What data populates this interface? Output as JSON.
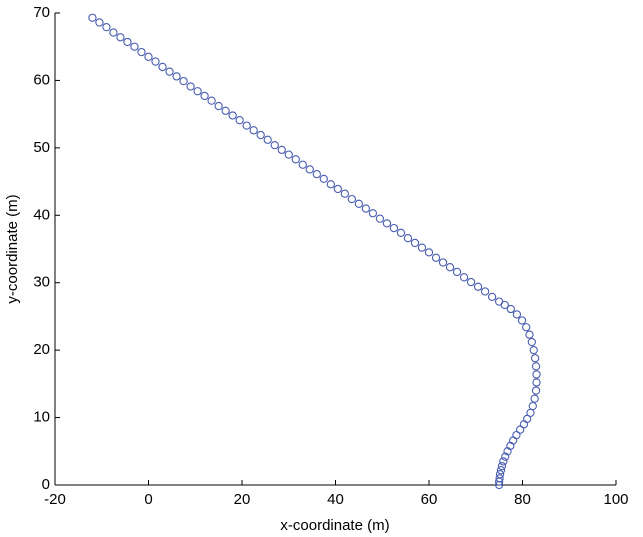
{
  "chart_data": {
    "type": "scatter",
    "x_label": "x-coordinate (m)",
    "y_label": "y-coordinate (m)",
    "color": "#4a5db0",
    "xlim": [
      -20,
      100
    ],
    "xticks": [
      -20,
      0,
      20,
      40,
      60,
      80,
      100
    ],
    "ylim": [
      0,
      70
    ],
    "yticks": [
      0,
      10,
      20,
      30,
      40,
      50,
      60,
      70
    ],
    "x": [
      75,
      75,
      75.1,
      75.2,
      75.4,
      75.6,
      75.9,
      76.3,
      76.8,
      77.4,
      78,
      78.7,
      79.5,
      80.3,
      81,
      81.7,
      82.2,
      82.6,
      82.9,
      83,
      83,
      82.9,
      82.7,
      82.4,
      82,
      81.5,
      80.8,
      79.9,
      78.8,
      77.5,
      76.2,
      75,
      73.5,
      72,
      70.5,
      69,
      67.5,
      66,
      64.5,
      63,
      61.5,
      60,
      58.5,
      57,
      55.5,
      54,
      52.5,
      51,
      49.5,
      48,
      46.5,
      45,
      43.5,
      42,
      40.5,
      39,
      37.5,
      36,
      34.5,
      33,
      31.5,
      30,
      28.5,
      27,
      25.5,
      24,
      22.5,
      21,
      19.5,
      18,
      16.5,
      15,
      13.5,
      12,
      10.5,
      9,
      7.5,
      6,
      4.5,
      3,
      1.5,
      0,
      -1.5,
      -3,
      -4.5,
      -6,
      -7.5,
      -9,
      -10.5,
      -12
    ],
    "values": [
      0,
      0.5,
      1,
      1.6,
      2.2,
      2.8,
      3.5,
      4.2,
      5,
      5.8,
      6.6,
      7.4,
      8.2,
      9,
      9.8,
      10.7,
      11.7,
      12.8,
      14,
      15.2,
      16.4,
      17.6,
      18.8,
      20,
      21.2,
      22.3,
      23.4,
      24.4,
      25.3,
      26.1,
      26.7,
      27.2,
      27.9,
      28.7,
      29.4,
      30.1,
      30.8,
      31.6,
      32.3,
      33,
      33.7,
      34.5,
      35.2,
      35.9,
      36.6,
      37.4,
      38.1,
      38.8,
      39.5,
      40.3,
      41,
      41.7,
      42.4,
      43.2,
      43.9,
      44.6,
      45.4,
      46.1,
      46.8,
      47.5,
      48.3,
      49,
      49.7,
      50.4,
      51.2,
      51.9,
      52.6,
      53.3,
      54.1,
      54.8,
      55.5,
      56.2,
      57,
      57.7,
      58.4,
      59.1,
      59.9,
      60.6,
      61.3,
      62,
      62.8,
      63.5,
      64.2,
      65,
      65.7,
      66.4,
      67.1,
      67.9,
      68.6,
      69.3
    ]
  }
}
